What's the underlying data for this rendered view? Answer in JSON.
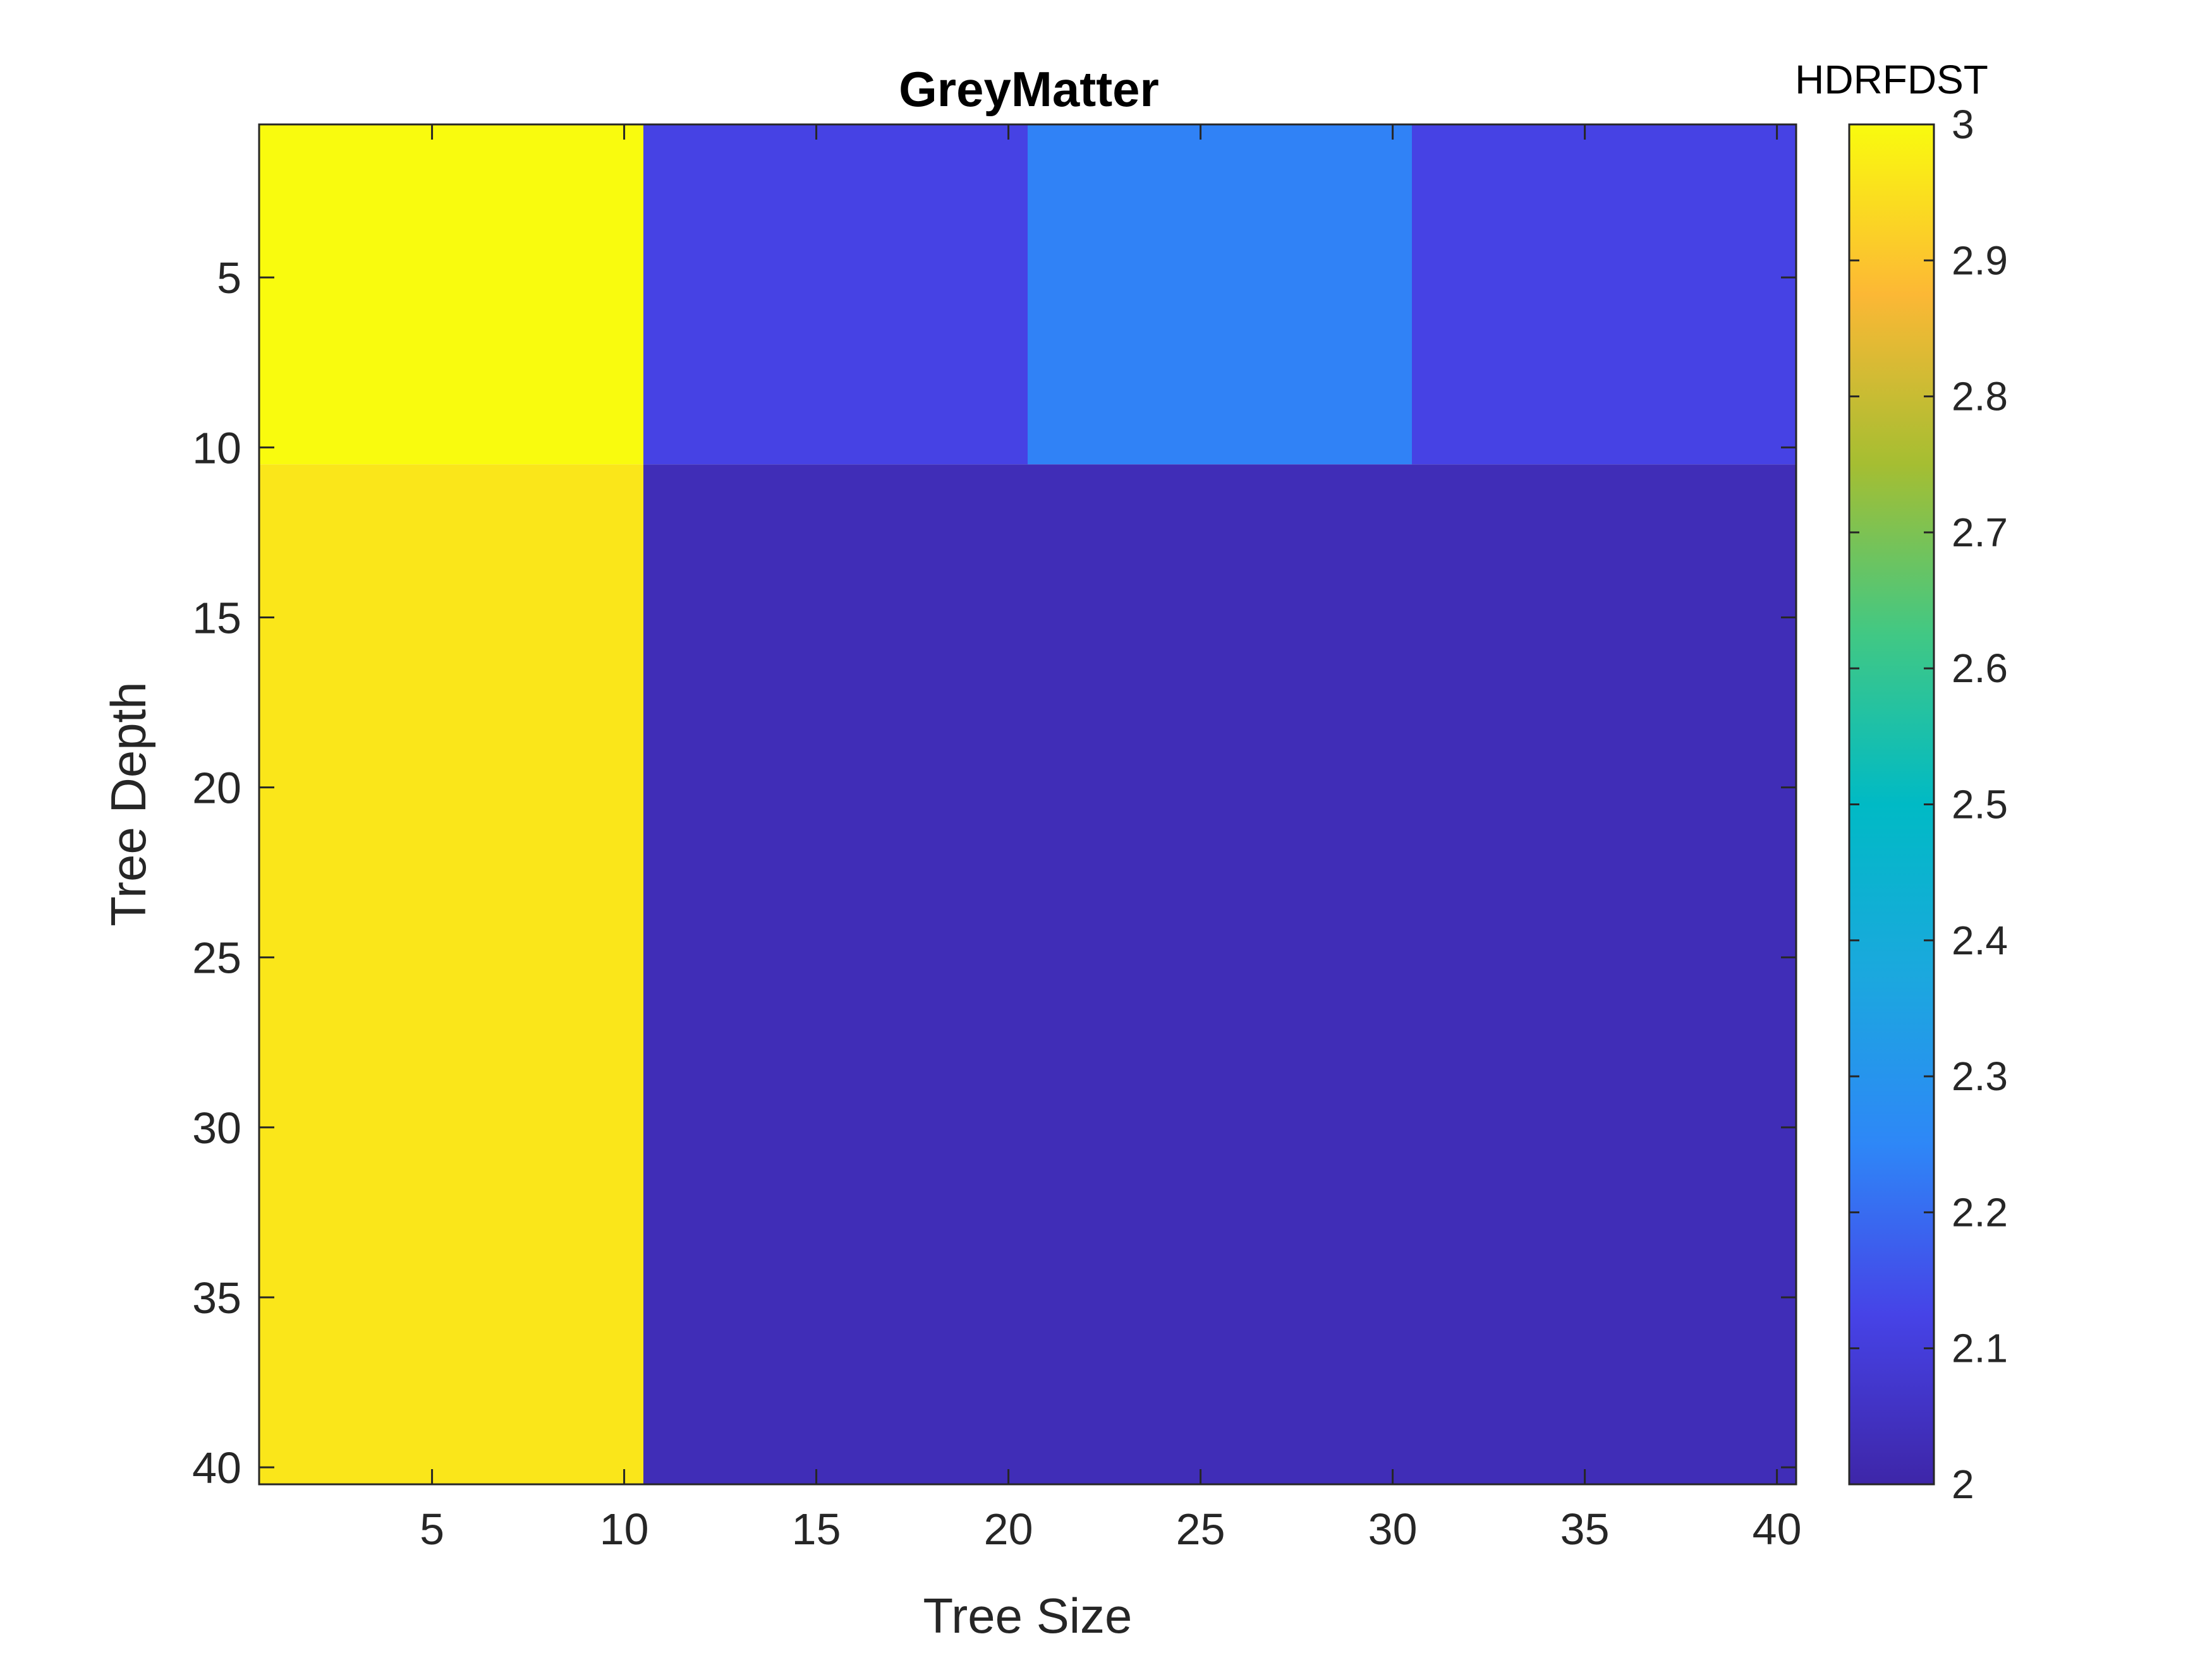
{
  "chart_data": {
    "type": "heatmap",
    "title": "GreyMatter",
    "xlabel": "Tree Size",
    "ylabel": "Tree Depth",
    "x_range": [
      0.5,
      40.5
    ],
    "y_range": [
      0.5,
      40.5
    ],
    "y_reversed": true,
    "x_ticks": [
      5,
      10,
      15,
      20,
      25,
      30,
      35,
      40
    ],
    "y_ticks": [
      5,
      10,
      15,
      20,
      25,
      30,
      35,
      40
    ],
    "x_tick_labels": [
      "5",
      "10",
      "15",
      "20",
      "25",
      "30",
      "35",
      "40"
    ],
    "y_tick_labels": [
      "5",
      "10",
      "15",
      "20",
      "25",
      "30",
      "35",
      "40"
    ],
    "x_categories": [
      5.5,
      15.5,
      25.5,
      35.5
    ],
    "y_categories": [
      5.5,
      25.5
    ],
    "values": [
      [
        3.0,
        2.12,
        2.24,
        2.12
      ],
      [
        2.96,
        2.03,
        2.03,
        2.03
      ]
    ],
    "x_cell_edges": [
      0.5,
      10.5,
      20.5,
      30.5,
      40.5
    ],
    "y_cell_edges": [
      0.5,
      10.5,
      40.5
    ],
    "colorbar": {
      "label": "HDRFDST",
      "min": 2,
      "max": 3,
      "ticks": [
        "2",
        "2.1",
        "2.2",
        "2.3",
        "2.4",
        "2.5",
        "2.6",
        "2.7",
        "2.8",
        "2.9",
        "3"
      ],
      "colormap": "parula"
    },
    "grid": false,
    "colors": {
      "axis": "#262626",
      "title": "#000000"
    }
  }
}
